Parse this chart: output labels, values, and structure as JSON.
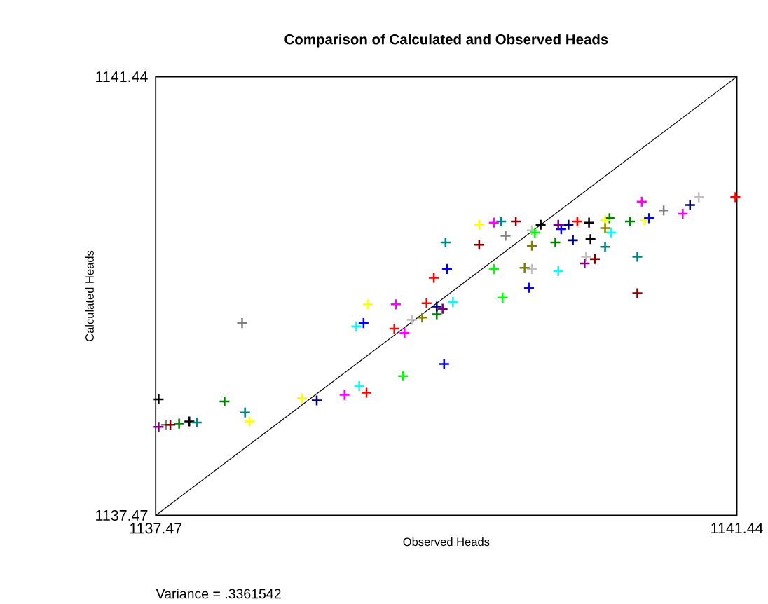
{
  "chart_data": {
    "type": "scatter",
    "title": "Comparison of Calculated and Observed Heads",
    "xlabel": "Observed Heads",
    "ylabel": "Calculated Heads",
    "annotations": [
      "Variance = .3361542"
    ],
    "xlim": [
      1137.47,
      1141.44
    ],
    "ylim": [
      1137.47,
      1141.44
    ],
    "xticks": [
      1137.47,
      1141.44
    ],
    "yticks": [
      1137.47,
      1141.44
    ],
    "marker": "cross",
    "series": [
      {
        "type": "line",
        "marker": "none",
        "color": "#000000",
        "x": [
          1137.47,
          1141.44
        ],
        "values": [
          1137.47,
          1141.44
        ]
      },
      {
        "color": "#000000",
        "x": [
          1137.49,
          1137.7,
          1140.1,
          1140.43,
          1140.44
        ],
        "values": [
          1138.52,
          1138.32,
          1140.1,
          1140.12,
          1139.97
        ]
      },
      {
        "color": "#808080",
        "x": [
          1138.06,
          1139.86,
          1140.94,
          1137.54
        ],
        "values": [
          1139.21,
          1140.0,
          1140.23,
          1138.29
        ]
      },
      {
        "color": "#c0c0c0",
        "x": [
          1139.22,
          1140.04,
          1140.41,
          1141.18,
          1140.04
        ],
        "values": [
          1139.24,
          1139.7,
          1139.81,
          1140.35,
          1140.05
        ]
      },
      {
        "color": "#008000",
        "x": [
          1137.94,
          1137.63,
          1139.39,
          1140.2,
          1140.71,
          1140.57
        ],
        "values": [
          1138.5,
          1138.3,
          1139.29,
          1139.94,
          1140.13,
          1140.16
        ]
      },
      {
        "color": "#008080",
        "x": [
          1138.08,
          1137.75,
          1139.45,
          1140.54,
          1140.76,
          1139.83
        ],
        "values": [
          1138.4,
          1138.31,
          1139.94,
          1139.9,
          1139.81,
          1140.13
        ]
      },
      {
        "color": "#ffff00",
        "x": [
          1138.11,
          1138.47,
          1138.92,
          1139.68,
          1140.54,
          1140.81
        ],
        "values": [
          1138.32,
          1138.53,
          1139.38,
          1140.1,
          1140.14,
          1140.14
        ]
      },
      {
        "color": "#000080",
        "x": [
          1138.57,
          1139.39,
          1140.32,
          1141.12,
          1140.29
        ],
        "values": [
          1138.51,
          1139.36,
          1139.96,
          1140.28,
          1140.1
        ]
      },
      {
        "color": "#ff00ff",
        "x": [
          1138.76,
          1139.11,
          1139.17,
          1139.78,
          1140.79,
          1141.07
        ],
        "values": [
          1138.56,
          1139.38,
          1139.12,
          1140.12,
          1140.31,
          1140.2
        ]
      },
      {
        "color": "#ff0000",
        "x": [
          1138.91,
          1139.1,
          1139.37,
          1139.32,
          1140.35,
          1141.43
        ],
        "values": [
          1138.58,
          1139.16,
          1139.62,
          1139.39,
          1140.13,
          1140.35
        ]
      },
      {
        "color": "#00ffff",
        "x": [
          1138.86,
          1138.84,
          1139.5,
          1140.22,
          1140.58
        ],
        "values": [
          1138.64,
          1139.18,
          1139.4,
          1139.68,
          1140.03
        ]
      },
      {
        "color": "#0000ff",
        "x": [
          1138.89,
          1139.44,
          1139.46,
          1140.02,
          1140.84,
          1140.24
        ],
        "values": [
          1139.21,
          1138.84,
          1139.7,
          1139.53,
          1140.16,
          1140.06
        ]
      },
      {
        "color": "#00ff00",
        "x": [
          1139.16,
          1139.84,
          1139.78,
          1140.06
        ],
        "values": [
          1138.73,
          1139.44,
          1139.7,
          1140.03
        ]
      },
      {
        "color": "#800000",
        "x": [
          1137.57,
          1139.68,
          1139.93,
          1140.76,
          1140.47
        ],
        "values": [
          1138.29,
          1139.92,
          1140.13,
          1139.48,
          1139.79
        ]
      },
      {
        "color": "#808000",
        "x": [
          1139.29,
          1139.99,
          1140.04,
          1140.54
        ],
        "values": [
          1139.26,
          1139.71,
          1139.91,
          1140.07
        ]
      },
      {
        "color": "#800080",
        "x": [
          1137.49,
          1139.43,
          1140.22,
          1140.4
        ],
        "values": [
          1138.27,
          1139.34,
          1140.1,
          1139.75
        ]
      }
    ]
  }
}
